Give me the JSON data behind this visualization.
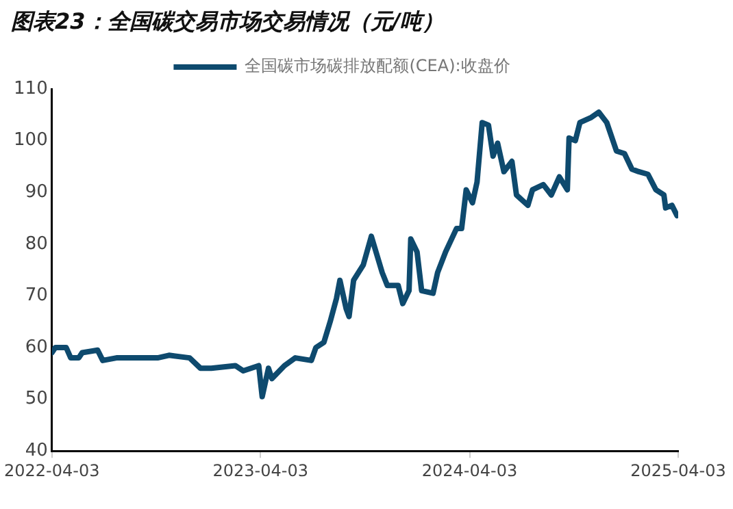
{
  "chart_data": {
    "type": "line",
    "title": "图表23：全国碳交易市场交易情况（元/吨）",
    "x": [
      "2022-04-03",
      "2022-04-09",
      "2022-04-28",
      "2022-05-06",
      "2022-05-20",
      "2022-05-26",
      "2022-06-22",
      "2022-07-01",
      "2022-07-25",
      "2022-08-22",
      "2022-10-05",
      "2022-10-25",
      "2022-11-30",
      "2022-12-19",
      "2023-01-07",
      "2023-02-18",
      "2023-03-04",
      "2023-03-31",
      "2023-04-06",
      "2023-04-17",
      "2023-04-23",
      "2023-05-15",
      "2023-06-03",
      "2023-07-01",
      "2023-07-09",
      "2023-07-23",
      "2023-08-03",
      "2023-08-14",
      "2023-08-20",
      "2023-08-31",
      "2023-09-05",
      "2023-09-13",
      "2023-09-30",
      "2023-10-14",
      "2023-11-02",
      "2023-11-11",
      "2023-11-30",
      "2023-12-08",
      "2023-12-19",
      "2023-12-22",
      "2024-01-02",
      "2024-01-10",
      "2024-01-30",
      "2024-02-07",
      "2024-02-21",
      "2024-03-11",
      "2024-03-20",
      "2024-03-28",
      "2024-04-08",
      "2024-04-16",
      "2024-04-25",
      "2024-05-06",
      "2024-05-14",
      "2024-05-22",
      "2024-06-02",
      "2024-06-16",
      "2024-06-24",
      "2024-07-14",
      "2024-07-22",
      "2024-08-10",
      "2024-08-24",
      "2024-09-07",
      "2024-09-21",
      "2024-09-24",
      "2024-10-05",
      "2024-10-13",
      "2024-11-02",
      "2024-11-15",
      "2024-11-29",
      "2024-12-16",
      "2024-12-30",
      "2025-01-12",
      "2025-01-24",
      "2025-02-09",
      "2025-02-23",
      "2025-03-09",
      "2025-03-12",
      "2025-03-23",
      "2025-04-01"
    ],
    "series": [
      {
        "name": "全国碳市场碳排放配额(CEA):收盘价",
        "color": "#0e4a6e",
        "values": [
          59,
          60,
          60,
          58,
          58,
          59,
          59.5,
          57.5,
          58,
          58,
          58,
          58.5,
          58,
          56,
          56,
          56.5,
          55.5,
          56.5,
          50.5,
          56,
          54,
          56.5,
          58,
          57.5,
          60,
          61,
          65,
          69.5,
          73,
          67.5,
          66,
          73,
          76,
          81.5,
          74.5,
          72,
          72,
          68.5,
          71,
          81,
          78.5,
          71,
          70.5,
          74.5,
          78.5,
          83,
          83,
          90.5,
          88,
          92,
          103.5,
          103,
          97,
          99.5,
          94,
          96,
          89.5,
          87.5,
          90.5,
          91.5,
          89.5,
          93,
          90.5,
          100.5,
          100,
          103.5,
          104.5,
          105.5,
          103.5,
          98,
          97.5,
          94.5,
          94,
          93.5,
          90.5,
          89.5,
          87,
          87.5,
          85.5
        ]
      }
    ],
    "xlim": [
      "2022-04-03",
      "2025-04-03"
    ],
    "xticks": [
      "2022-04-03",
      "2023-04-03",
      "2024-04-03",
      "2025-04-03"
    ],
    "ylim": [
      40,
      110
    ],
    "yticks": [
      40,
      50,
      60,
      70,
      80,
      90,
      100,
      110
    ],
    "grid": false,
    "legend": "top",
    "marker": "none",
    "line_style": "solid"
  }
}
